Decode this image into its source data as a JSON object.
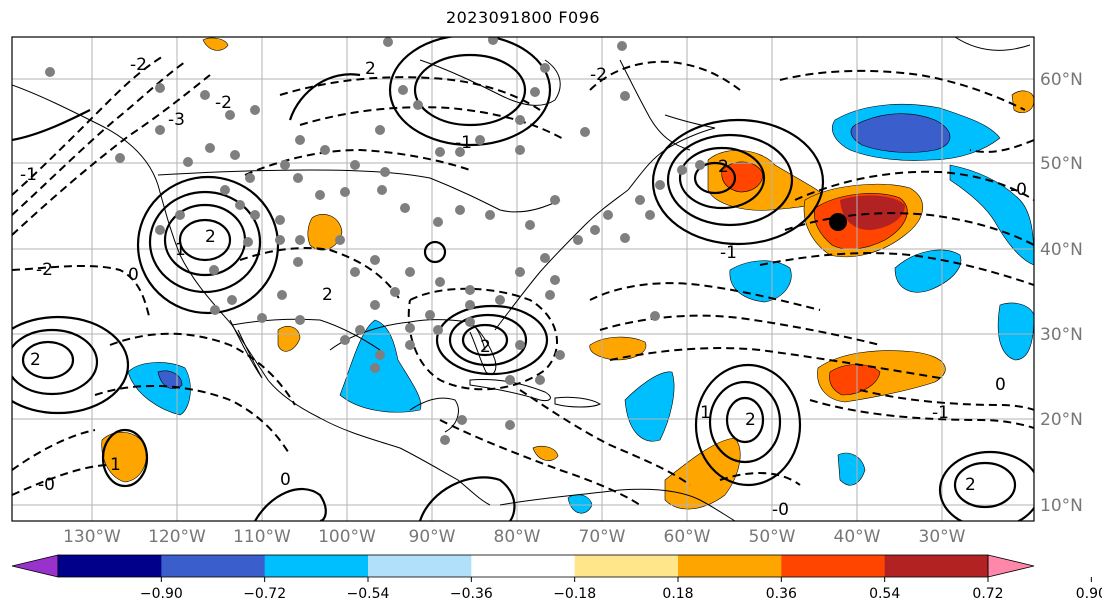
{
  "title": "2023091800 F096",
  "longitude_labels": [
    "130°W",
    "120°W",
    "110°W",
    "100°W",
    "90°W",
    "80°W",
    "70°W",
    "60°W",
    "50°W",
    "40°W",
    "30°W"
  ],
  "latitude_labels": [
    "60°N",
    "50°N",
    "40°N",
    "30°N",
    "20°N",
    "10°N"
  ],
  "colorbar": {
    "tick_labels": [
      "−0.90",
      "−0.72",
      "−0.54",
      "−0.36",
      "−0.18",
      "0.18",
      "0.36",
      "0.54",
      "0.72",
      "0.90"
    ],
    "colors": [
      "#9932cc",
      "#00008b",
      "#3a5fcd",
      "#00bfff",
      "#b0e0fa",
      "#ffffff",
      "#ffe68a",
      "#ffa500",
      "#ff4500",
      "#b22222",
      "#ff88aa"
    ]
  },
  "contour_labels": [
    "2",
    "-2",
    "-3",
    "-2",
    "2",
    "1",
    "0",
    "-1",
    "-2",
    "2",
    "-2",
    "2",
    "2",
    "-1",
    "-1",
    "0",
    "-0",
    "2",
    "-0",
    "0",
    "1",
    "-0",
    "1",
    "-1",
    "2",
    "2"
  ]
}
